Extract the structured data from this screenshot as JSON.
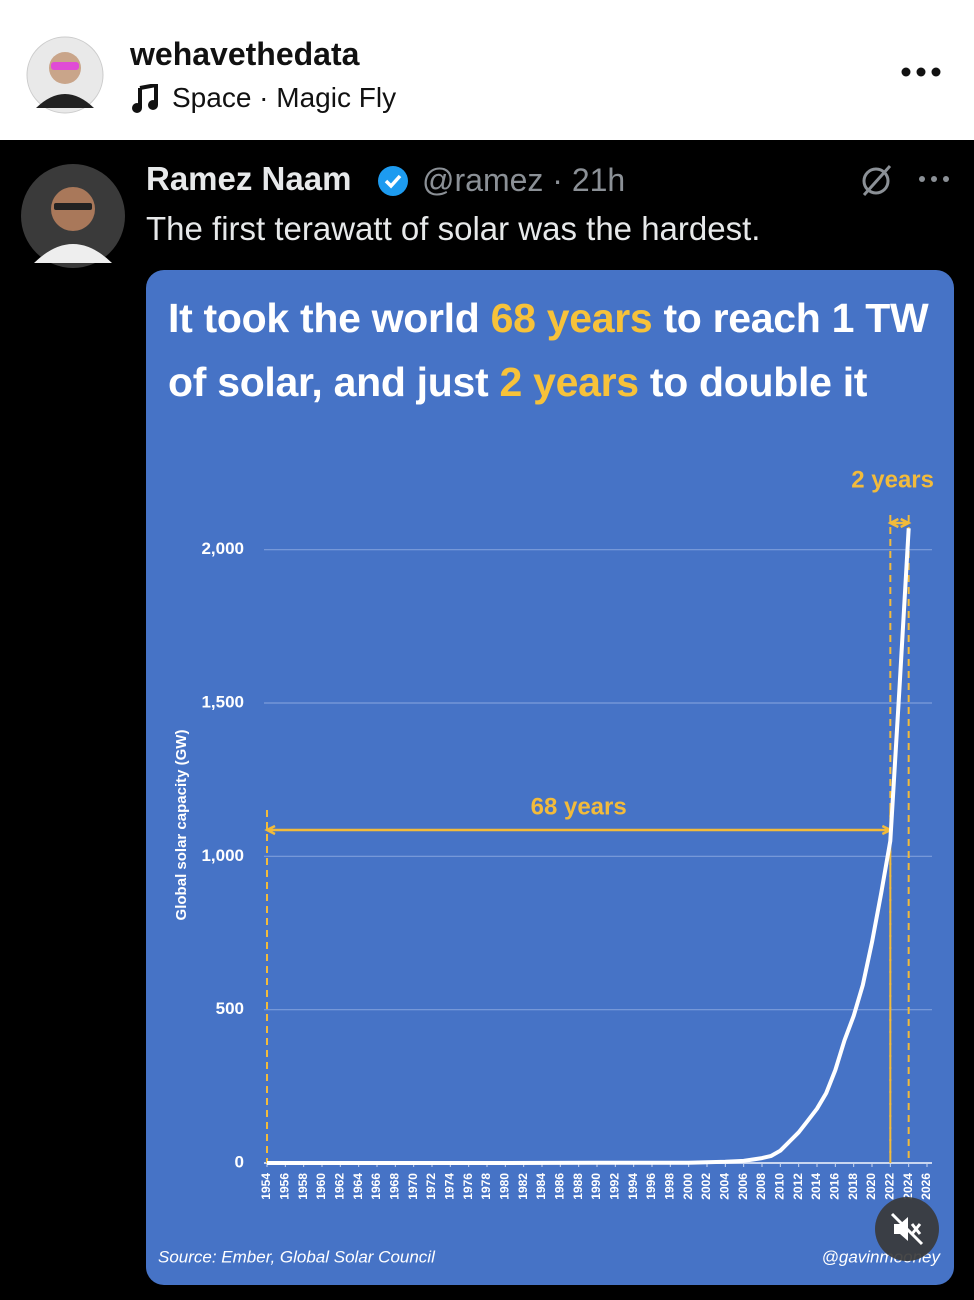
{
  "post": {
    "username": "wehavethedata",
    "music": "Space · Magic Fly"
  },
  "tweet": {
    "author": "Ramez Naam",
    "meta": "@ramez · 21h",
    "text": "The first terawatt of solar was the hardest."
  },
  "chart_data": {
    "type": "line",
    "title_parts": [
      {
        "text": "It took the world ",
        "highlight": false
      },
      {
        "text": "68 years",
        "highlight": true
      },
      {
        "text": " to reach 1 TW of solar, and just ",
        "highlight": false
      },
      {
        "text": "2 years",
        "highlight": true
      },
      {
        "text": " to double it",
        "highlight": false
      }
    ],
    "highlight_color": "#f7c23a",
    "y_label": "Global solar capacity (GW)",
    "x": [
      1954,
      1970,
      1980,
      1990,
      2000,
      2004,
      2006,
      2008,
      2009,
      2010,
      2011,
      2012,
      2013,
      2014,
      2015,
      2016,
      2017,
      2018,
      2019,
      2020,
      2021,
      2022,
      2023,
      2024
    ],
    "values": [
      0,
      0,
      0,
      1,
      1,
      4,
      7,
      16,
      23,
      40,
      70,
      100,
      138,
      177,
      228,
      303,
      400,
      480,
      580,
      720,
      880,
      1050,
      1550,
      2070
    ],
    "color": "#ffffff",
    "xlim": [
      1954,
      2026
    ],
    "xticks": [
      1954,
      1956,
      1958,
      1960,
      1962,
      1964,
      1966,
      1968,
      1970,
      1972,
      1974,
      1976,
      1978,
      1980,
      1982,
      1984,
      1986,
      1988,
      1990,
      1992,
      1994,
      1996,
      1998,
      2000,
      2002,
      2004,
      2006,
      2008,
      2010,
      2012,
      2014,
      2016,
      2018,
      2020,
      2022,
      2024,
      2026
    ],
    "ylim": [
      0,
      2100
    ],
    "yticks": [
      0,
      500,
      {
        "value": 1000,
        "label": "1,000"
      },
      {
        "value": 1500,
        "label": "1,500"
      },
      {
        "value": 2000,
        "label": "2,000"
      }
    ],
    "grid": true,
    "annotations": [
      {
        "text": "68 years",
        "x": [
          1954,
          2022
        ]
      },
      {
        "text": "2 years",
        "x": [
          2022,
          2024
        ]
      }
    ],
    "annotation_color": "#f2bb3b",
    "source": "Source: Ember, Global Solar Council",
    "credit": "@gavinmooney"
  }
}
